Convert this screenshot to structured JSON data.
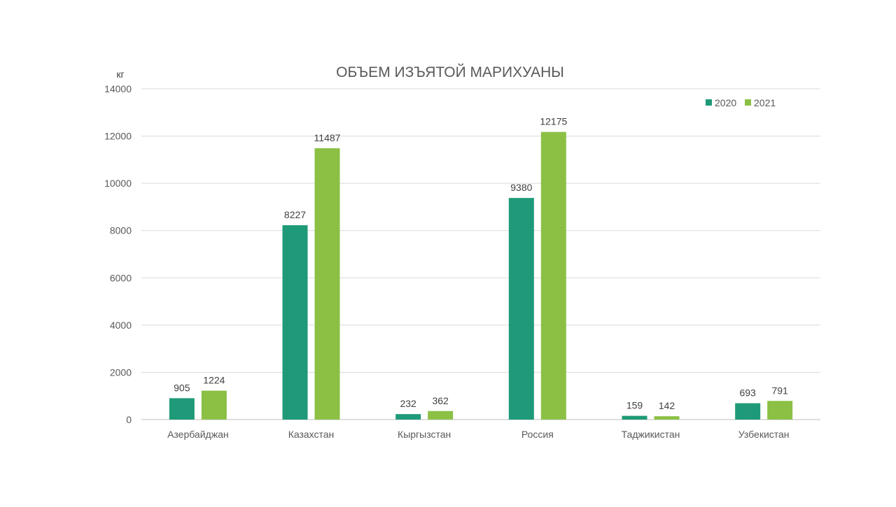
{
  "chart_data": {
    "type": "bar",
    "title": "ОБЪЕМ ИЗЪЯТОЙ МАРИХУАНЫ",
    "ylabel": "кг",
    "xlabel": "",
    "ylim": [
      0,
      14000
    ],
    "yticks": [
      0,
      2000,
      4000,
      6000,
      8000,
      10000,
      12000,
      14000
    ],
    "grid": true,
    "legend_position": "top-right",
    "categories": [
      "Азербайджан",
      "Казахстан",
      "Кыргызстан",
      "Россия",
      "Таджикистан",
      "Узбекистан"
    ],
    "series": [
      {
        "name": "2020",
        "color": "#1f9a78",
        "values": [
          905,
          8227,
          232,
          9380,
          159,
          693
        ]
      },
      {
        "name": "2021",
        "color": "#8bc045",
        "values": [
          1224,
          11487,
          362,
          12175,
          142,
          791
        ]
      }
    ]
  }
}
